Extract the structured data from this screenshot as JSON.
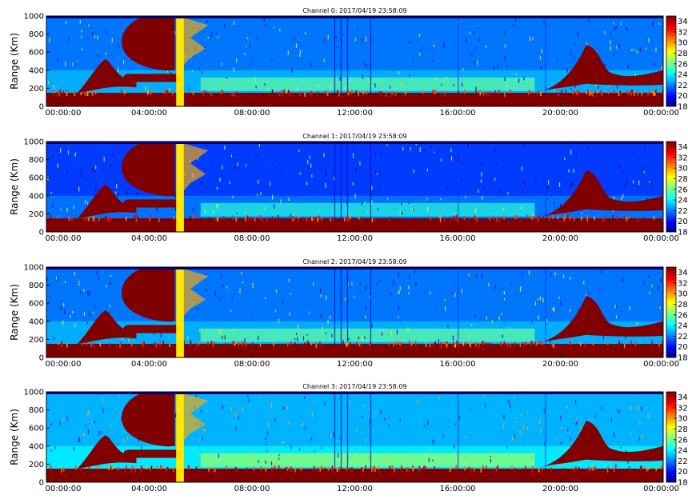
{
  "chart_data": [
    {
      "type": "heatmap",
      "title": "Channel 0: 2017/04/19 23:58:09",
      "ylabel": "Range (Km)",
      "xlabel": "",
      "x_tick_labels": [
        "00:00:00",
        "04:00:00",
        "08:00:00",
        "12:00:00",
        "16:00:00",
        "20:00:00",
        "00:00:00"
      ],
      "y_tick_labels": [
        "0",
        "200",
        "400",
        "600",
        "800",
        "1000"
      ],
      "ylim": [
        0,
        1000
      ],
      "xlim": [
        "00:00:00",
        "00:00:00"
      ],
      "colorbar": {
        "min": 18,
        "max": 35,
        "ticks": [
          "18",
          "20",
          "22",
          "24",
          "26",
          "28",
          "30",
          "32",
          "34"
        ],
        "colormap": "jet"
      },
      "background_level": 23,
      "features": [
        {
          "kind": "strong-layer",
          "range_low": 0,
          "range_high": 150,
          "value": 35
        },
        {
          "kind": "cloud",
          "time_start": 3.0,
          "time_end": 5.0,
          "range_low": 400,
          "range_high": 1000,
          "value": 35
        },
        {
          "kind": "rising-plume",
          "time_start": 1.2,
          "time_end": 3.5,
          "range_low": 150,
          "range_high": 520,
          "value": 35
        },
        {
          "kind": "band",
          "time_start": 3.0,
          "time_end": 5.2,
          "range_low": 270,
          "range_high": 360,
          "value": 35
        },
        {
          "kind": "vertical-stripe",
          "time_start": 5.05,
          "time_end": 5.35,
          "value": 29
        },
        {
          "kind": "evening-plume",
          "time_start": 19.0,
          "time_end": 24.0,
          "range_low": 150,
          "range_high": 680,
          "value": 35
        }
      ]
    },
    {
      "type": "heatmap",
      "title": "Channel 1: 2017/04/19 23:58:09",
      "ylabel": "Range (Km)",
      "xlabel": "",
      "x_tick_labels": [
        "00:00:00",
        "04:00:00",
        "08:00:00",
        "12:00:00",
        "16:00:00",
        "20:00:00",
        "00:00:00"
      ],
      "y_tick_labels": [
        "0",
        "200",
        "400",
        "600",
        "800",
        "1000"
      ],
      "ylim": [
        0,
        1000
      ],
      "xlim": [
        "00:00:00",
        "00:00:00"
      ],
      "colorbar": {
        "min": 18,
        "max": 35,
        "ticks": [
          "18",
          "20",
          "22",
          "24",
          "26",
          "28",
          "30",
          "32",
          "34"
        ],
        "colormap": "jet"
      },
      "background_level": 22,
      "features": [
        {
          "kind": "strong-layer",
          "range_low": 0,
          "range_high": 150,
          "value": 35
        },
        {
          "kind": "cloud",
          "time_start": 3.0,
          "time_end": 5.0,
          "range_low": 400,
          "range_high": 1000,
          "value": 35
        },
        {
          "kind": "rising-plume",
          "time_start": 1.2,
          "time_end": 3.5,
          "range_low": 150,
          "range_high": 520,
          "value": 35
        },
        {
          "kind": "band",
          "time_start": 3.0,
          "time_end": 5.2,
          "range_low": 270,
          "range_high": 360,
          "value": 35
        },
        {
          "kind": "vertical-stripe",
          "time_start": 5.05,
          "time_end": 5.35,
          "value": 29
        },
        {
          "kind": "evening-plume",
          "time_start": 19.0,
          "time_end": 24.0,
          "range_low": 150,
          "range_high": 680,
          "value": 35
        }
      ]
    },
    {
      "type": "heatmap",
      "title": "Channel 2: 2017/04/19 23:58:09",
      "ylabel": "Range (Km)",
      "xlabel": "",
      "x_tick_labels": [
        "00:00:00",
        "04:00:00",
        "08:00:00",
        "12:00:00",
        "16:00:00",
        "20:00:00",
        "00:00:00"
      ],
      "y_tick_labels": [
        "0",
        "200",
        "400",
        "600",
        "800",
        "1000"
      ],
      "ylim": [
        0,
        1000
      ],
      "xlim": [
        "00:00:00",
        "00:00:00"
      ],
      "colorbar": {
        "min": 18,
        "max": 35,
        "ticks": [
          "18",
          "20",
          "22",
          "24",
          "26",
          "28",
          "30",
          "32",
          "34"
        ],
        "colormap": "jet"
      },
      "background_level": 23,
      "features": [
        {
          "kind": "strong-layer",
          "range_low": 0,
          "range_high": 150,
          "value": 35
        },
        {
          "kind": "cloud",
          "time_start": 3.0,
          "time_end": 5.0,
          "range_low": 400,
          "range_high": 1000,
          "value": 35
        },
        {
          "kind": "rising-plume",
          "time_start": 1.2,
          "time_end": 3.5,
          "range_low": 150,
          "range_high": 520,
          "value": 35
        },
        {
          "kind": "band",
          "time_start": 3.0,
          "time_end": 5.2,
          "range_low": 270,
          "range_high": 360,
          "value": 35
        },
        {
          "kind": "vertical-stripe",
          "time_start": 5.05,
          "time_end": 5.35,
          "value": 29
        },
        {
          "kind": "evening-plume",
          "time_start": 19.0,
          "time_end": 24.0,
          "range_low": 150,
          "range_high": 680,
          "value": 35
        }
      ]
    },
    {
      "type": "heatmap",
      "title": "Channel 3: 2017/04/19 23:58:09",
      "ylabel": "Range (Km)",
      "xlabel": "",
      "x_tick_labels": [
        "00:00:00",
        "04:00:00",
        "08:00:00",
        "12:00:00",
        "16:00:00",
        "20:00:00",
        "00:00:00"
      ],
      "y_tick_labels": [
        "0",
        "200",
        "400",
        "600",
        "800",
        "1000"
      ],
      "ylim": [
        0,
        1000
      ],
      "xlim": [
        "00:00:00",
        "00:00:00"
      ],
      "colorbar": {
        "min": 18,
        "max": 35,
        "ticks": [
          "18",
          "20",
          "22",
          "24",
          "26",
          "28",
          "30",
          "32",
          "34"
        ],
        "colormap": "jet"
      },
      "background_level": 24,
      "features": [
        {
          "kind": "strong-layer",
          "range_low": 0,
          "range_high": 150,
          "value": 35
        },
        {
          "kind": "cloud",
          "time_start": 3.0,
          "time_end": 5.0,
          "range_low": 400,
          "range_high": 1000,
          "value": 35
        },
        {
          "kind": "rising-plume",
          "time_start": 1.2,
          "time_end": 3.5,
          "range_low": 150,
          "range_high": 520,
          "value": 35
        },
        {
          "kind": "band",
          "time_start": 3.0,
          "time_end": 5.2,
          "range_low": 270,
          "range_high": 360,
          "value": 35
        },
        {
          "kind": "vertical-stripe",
          "time_start": 5.05,
          "time_end": 5.35,
          "value": 29
        },
        {
          "kind": "evening-plume",
          "time_start": 19.0,
          "time_end": 24.0,
          "range_low": 150,
          "range_high": 680,
          "value": 35
        }
      ]
    }
  ]
}
